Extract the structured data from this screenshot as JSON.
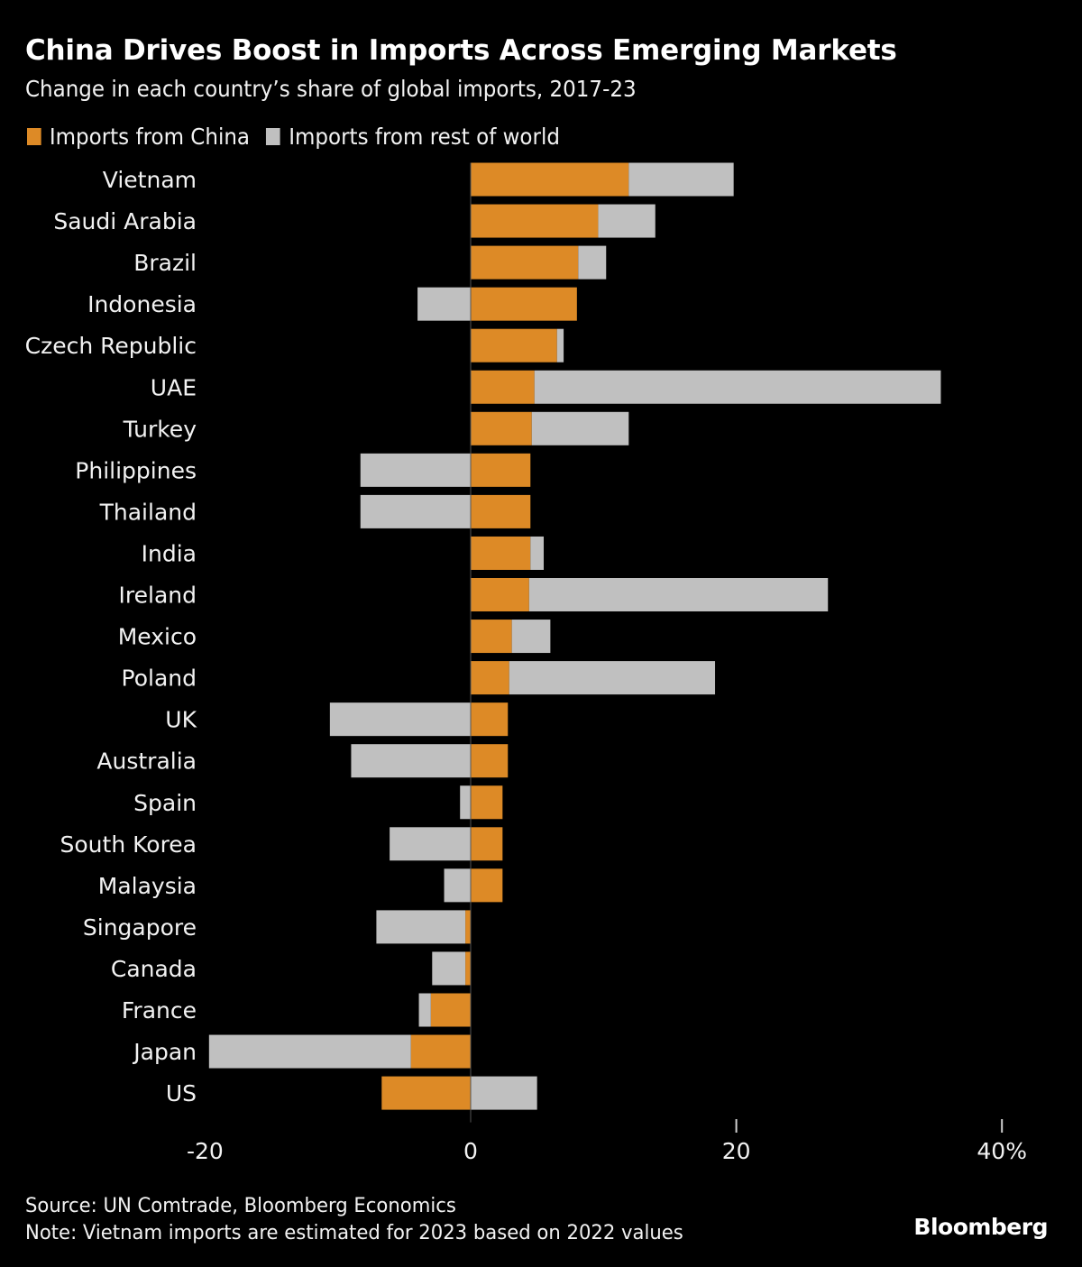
{
  "chart_data": {
    "type": "bar",
    "orientation": "horizontal",
    "stacked": true,
    "title": "China Drives Boost in Imports Across Emerging Markets",
    "subtitle": "Change in each country’s share of global imports, 2017-23",
    "xlabel": "",
    "ylabel": "",
    "xlim": [
      -20,
      40
    ],
    "xticks": [
      -20,
      0,
      20,
      40
    ],
    "xtick_labels": [
      "-20",
      "0",
      "20",
      "40%"
    ],
    "grid": false,
    "legend_position": "top-left",
    "categories": [
      "Vietnam",
      "Saudi Arabia",
      "Brazil",
      "Indonesia",
      "Czech Republic",
      "UAE",
      "Turkey",
      "Philippines",
      "Thailand",
      "India",
      "Ireland",
      "Mexico",
      "Poland",
      "UK",
      "Australia",
      "Spain",
      "South Korea",
      "Malaysia",
      "Singapore",
      "Canada",
      "France",
      "Japan",
      "US"
    ],
    "series": [
      {
        "name": "Imports from China",
        "color": "#DD8A26",
        "values": [
          11.9,
          9.6,
          8.1,
          8.0,
          6.5,
          4.8,
          4.6,
          4.5,
          4.5,
          4.5,
          4.4,
          3.1,
          2.9,
          2.8,
          2.8,
          2.4,
          2.4,
          2.4,
          -0.4,
          -0.4,
          -3.0,
          -4.5,
          -6.7
        ]
      },
      {
        "name": "Imports from rest of world",
        "color": "#C0C0C0",
        "values": [
          7.9,
          4.3,
          2.1,
          -4.0,
          0.5,
          30.6,
          7.3,
          -8.3,
          -8.3,
          1.0,
          22.5,
          2.9,
          15.5,
          -10.6,
          -9.0,
          -0.8,
          -6.1,
          -2.0,
          -6.7,
          -2.5,
          -0.9,
          -15.2,
          5.0
        ]
      }
    ]
  },
  "footer": {
    "source": "Source: UN Comtrade, Bloomberg Economics",
    "note": "Note: Vietnam imports are estimated for 2023 based on 2022 values",
    "brand": "Bloomberg"
  }
}
